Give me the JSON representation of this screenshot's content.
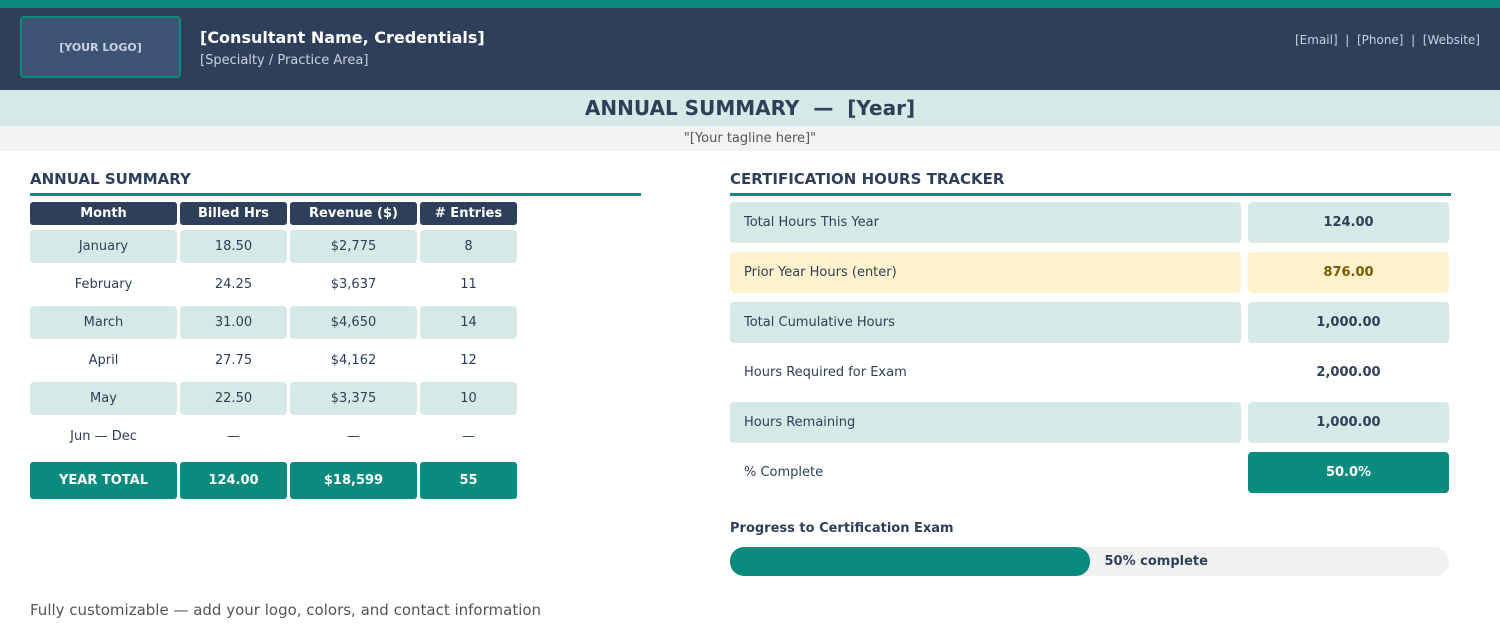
{
  "header": {
    "logo": "[YOUR LOGO]",
    "name": "[Consultant Name, Credentials]",
    "specialty": "[Specialty / Practice Area]",
    "contact": "[Email]  |  [Phone]  |  [Website]"
  },
  "banner": {
    "title": "ANNUAL SUMMARY  —  [Year]",
    "tagline": "\"[Your tagline here]\""
  },
  "summary": {
    "heading": "ANNUAL SUMMARY",
    "columns": [
      "Month",
      "Billed Hrs",
      "Revenue ($)",
      "# Entries"
    ],
    "rows": [
      [
        "January",
        "18.50",
        "$2,775",
        "8"
      ],
      [
        "February",
        "24.25",
        "$3,637",
        "11"
      ],
      [
        "March",
        "31.00",
        "$4,650",
        "14"
      ],
      [
        "April",
        "27.75",
        "$4,162",
        "12"
      ],
      [
        "May",
        "22.50",
        "$3,375",
        "10"
      ],
      [
        "Jun — Dec",
        "—",
        "—",
        "—"
      ]
    ],
    "total": [
      "YEAR TOTAL",
      "124.00",
      "$18,599",
      "55"
    ]
  },
  "tracker": {
    "heading": "CERTIFICATION HOURS TRACKER",
    "rows": [
      [
        "Total Hours This Year",
        "124.00"
      ],
      [
        "Prior Year Hours (enter)",
        "876.00"
      ],
      [
        "Total Cumulative Hours",
        "1,000.00"
      ],
      [
        "Hours Required for Exam",
        "2,000.00"
      ],
      [
        "Hours Remaining",
        "1,000.00"
      ],
      [
        "% Complete",
        "50.0%"
      ]
    ]
  },
  "progress": {
    "title": "Progress to Certification Exam",
    "percent": 50,
    "label": "50% complete"
  },
  "footer": "Fully customizable — add your logo, colors, and contact information"
}
